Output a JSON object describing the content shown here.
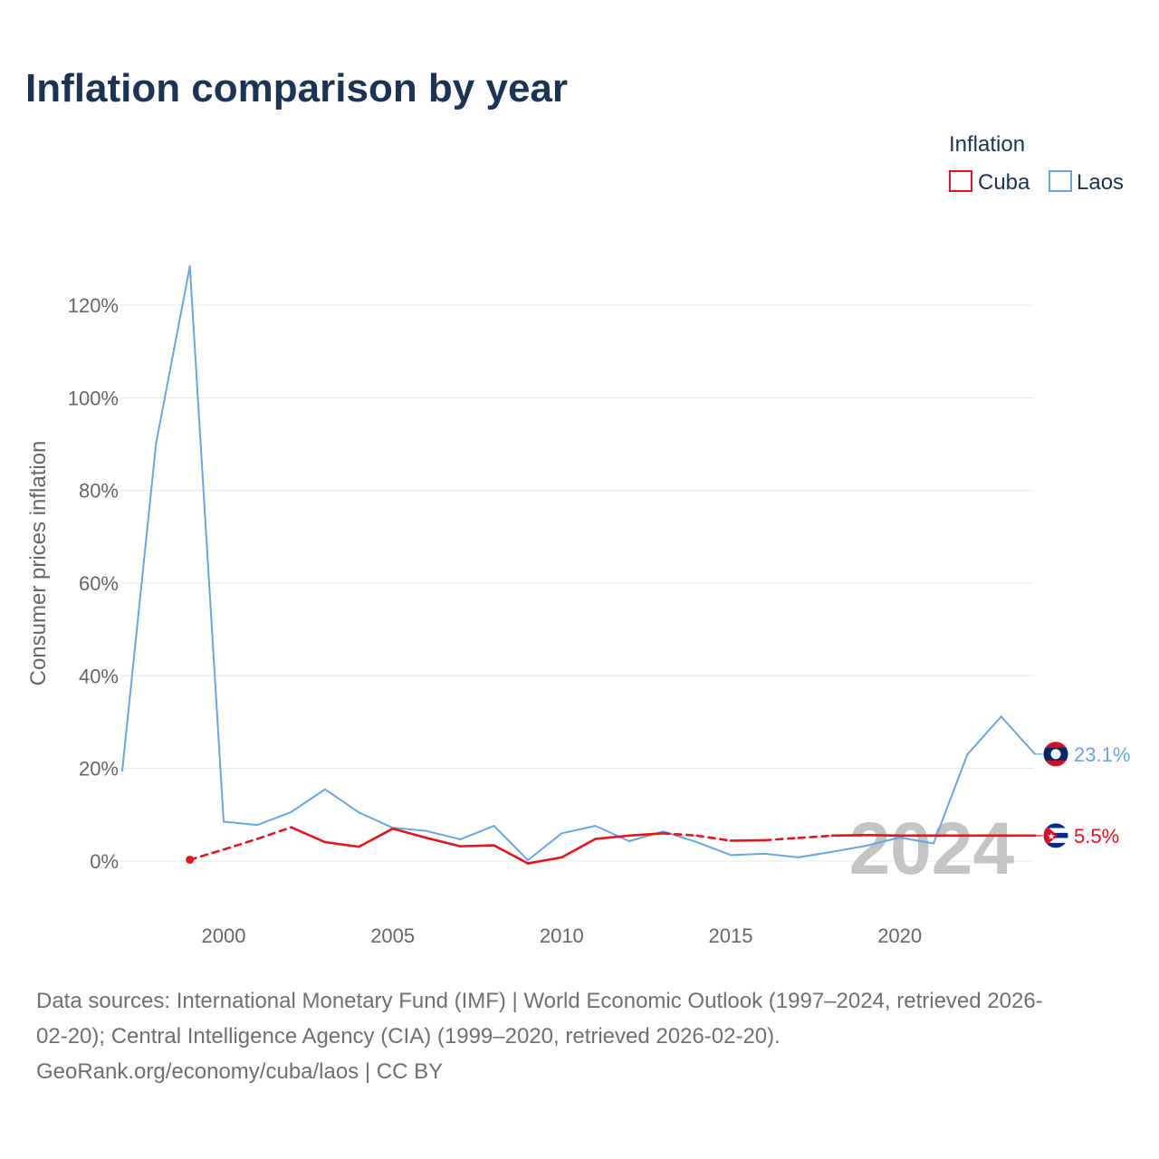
{
  "title": "Inflation comparison by year",
  "legend": {
    "title": "Inflation",
    "items": [
      {
        "name": "Cuba",
        "color": "#e8141c"
      },
      {
        "name": "Laos",
        "color": "#66a6e6"
      }
    ]
  },
  "watermark_year": "2024",
  "footer": {
    "line1": "Data sources: International Monetary Fund (IMF) | World Economic Outlook (1997–2024, retrieved 2026-",
    "line2": "02-20); Central Intelligence Agency (CIA) (1999–2020, retrieved 2026-02-20).",
    "line3": "GeoRank.org/economy/cuba/laos | CC BY"
  },
  "chart_data": {
    "type": "line",
    "title": "Inflation comparison by year",
    "xlabel": "",
    "ylabel": "Consumer prices inflation",
    "xlim": [
      1997,
      2024
    ],
    "ylim": [
      -10,
      130
    ],
    "x_ticks": [
      2000,
      2005,
      2010,
      2015,
      2020
    ],
    "y_ticks": [
      0,
      20,
      40,
      60,
      80,
      100,
      120
    ],
    "y_tick_labels": [
      "0%",
      "20%",
      "40%",
      "60%",
      "80%",
      "100%",
      "120%"
    ],
    "grid": true,
    "legend_position": "top-right",
    "series": [
      {
        "name": "Laos",
        "color": "#66a6e6",
        "end_label": "23.1%",
        "flag": "laos-flag-icon",
        "points": [
          [
            1997,
            19.5
          ],
          [
            1998,
            90.1
          ],
          [
            1999,
            128.4
          ],
          [
            2000,
            8.5
          ],
          [
            2001,
            7.8
          ],
          [
            2002,
            10.6
          ],
          [
            2003,
            15.5
          ],
          [
            2004,
            10.5
          ],
          [
            2005,
            7.2
          ],
          [
            2006,
            6.5
          ],
          [
            2007,
            4.7
          ],
          [
            2008,
            7.6
          ],
          [
            2009,
            0.2
          ],
          [
            2010,
            6.0
          ],
          [
            2011,
            7.6
          ],
          [
            2012,
            4.3
          ],
          [
            2013,
            6.4
          ],
          [
            2014,
            4.1
          ],
          [
            2015,
            1.3
          ],
          [
            2016,
            1.6
          ],
          [
            2017,
            0.8
          ],
          [
            2018,
            2.0
          ],
          [
            2019,
            3.3
          ],
          [
            2020,
            5.1
          ],
          [
            2021,
            3.8
          ],
          [
            2022,
            23.0
          ],
          [
            2023,
            31.2
          ],
          [
            2024,
            23.1
          ]
        ],
        "dashed_segments": []
      },
      {
        "name": "Cuba",
        "color": "#e8141c",
        "end_label": "5.5%",
        "flag": "cuba-flag-icon",
        "points": [
          [
            1999,
            0.3
          ],
          [
            2000,
            2.5
          ],
          [
            2001,
            4.8
          ],
          [
            2002,
            7.3
          ],
          [
            2003,
            4.1
          ],
          [
            2004,
            3.1
          ],
          [
            2005,
            7.0
          ],
          [
            2006,
            5.0
          ],
          [
            2007,
            3.2
          ],
          [
            2008,
            3.4
          ],
          [
            2009,
            -0.5
          ],
          [
            2010,
            0.8
          ],
          [
            2011,
            4.8
          ],
          [
            2012,
            5.5
          ],
          [
            2013,
            6.0
          ],
          [
            2014,
            5.5
          ],
          [
            2015,
            4.4
          ],
          [
            2016,
            4.5
          ],
          [
            2017,
            5.0
          ],
          [
            2018,
            5.5
          ],
          [
            2019,
            5.6
          ],
          [
            2020,
            5.5
          ],
          [
            2021,
            5.5
          ],
          [
            2022,
            5.5
          ],
          [
            2023,
            5.5
          ],
          [
            2024,
            5.5
          ]
        ],
        "dashed_segments": [
          [
            1999,
            2002
          ],
          [
            2013,
            2015
          ],
          [
            2016,
            2018
          ]
        ]
      }
    ]
  }
}
